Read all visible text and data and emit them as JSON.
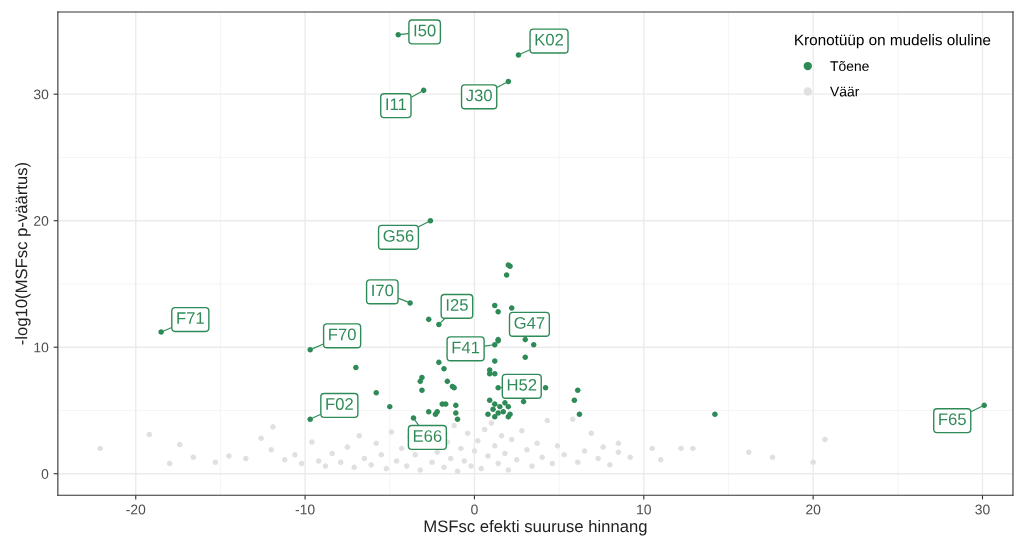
{
  "chart_data": {
    "type": "scatter",
    "xlabel": "MSFsc efekti suuruse hinnang",
    "ylabel": "-log10(MSFsc p-väärtus)",
    "xlim": [
      -24.6,
      31.8
    ],
    "ylim": [
      -1.7,
      36.5
    ],
    "xticks": [
      -20,
      -10,
      0,
      10,
      20,
      30
    ],
    "yticks": [
      0,
      10,
      20,
      30
    ],
    "grid": true,
    "legend": "top right",
    "legend_title": "Kronotüüp on mudelis oluline",
    "marker": "circle",
    "series": [
      {
        "name": "Tõene",
        "color": "#2e8b57",
        "x": [
          -4.5,
          2.6,
          2.0,
          -3.0,
          -2.6,
          -18.5,
          -9.7,
          -9.7,
          30.1,
          14.2,
          4.2,
          6.1,
          5.9,
          6.2,
          2.0,
          2.1,
          1.9,
          -3.8,
          -2.7,
          -2.1,
          1.2,
          1.4,
          2.2,
          1.2,
          1.4,
          1.4,
          3.0,
          3.5,
          3.0,
          1.2,
          -2.1,
          -1.8,
          0.9,
          0.9,
          1.2,
          -7.0,
          -3.1,
          -3.2,
          -3.1,
          -1.6,
          -1.3,
          -1.2,
          -5.8,
          1.4,
          2.9,
          -5.0,
          -1.9,
          -1.7,
          -2.7,
          -2.2,
          -2.3,
          -1.1,
          -1.1,
          -1.0,
          -3.6,
          0.9,
          1.2,
          1.5,
          1.8,
          1.1,
          1.4,
          1.7,
          0.8,
          1.2,
          2.0,
          2.0,
          2.1
        ],
        "values": [
          34.7,
          33.1,
          31.0,
          30.3,
          20.0,
          11.2,
          9.8,
          4.3,
          5.4,
          4.7,
          6.8,
          6.6,
          5.8,
          4.7,
          16.5,
          16.4,
          15.7,
          13.5,
          12.2,
          11.8,
          13.3,
          12.8,
          13.1,
          10.2,
          10.5,
          10.6,
          10.6,
          10.2,
          9.2,
          8.9,
          8.8,
          8.3,
          8.2,
          7.9,
          7.9,
          8.4,
          7.6,
          7.3,
          6.6,
          7.3,
          6.9,
          6.8,
          6.4,
          6.8,
          5.7,
          5.3,
          5.5,
          5.5,
          4.9,
          4.9,
          4.7,
          5.4,
          4.8,
          4.3,
          4.4,
          5.8,
          5.5,
          5.3,
          5.6,
          5.1,
          4.8,
          4.9,
          4.7,
          4.5,
          4.5,
          5.3,
          4.7
        ]
      },
      {
        "name": "Väär",
        "color": "#e0e0e0",
        "x": [
          -22.1,
          -19.2,
          -18.0,
          -17.4,
          -16.6,
          -15.3,
          -14.5,
          -13.5,
          -12.6,
          -11.9,
          -12.0,
          -11.2,
          -10.6,
          -10.2,
          -9.6,
          -9.2,
          -8.8,
          -8.4,
          -7.9,
          -7.5,
          -7.1,
          -6.8,
          -6.5,
          -6.1,
          -5.8,
          -5.5,
          -5.2,
          -4.9,
          -4.6,
          -4.3,
          -4.0,
          -3.8,
          -3.5,
          -3.2,
          -2.5,
          -2.2,
          -1.8,
          -1.6,
          -1.4,
          -1.2,
          -1.0,
          -0.8,
          -0.6,
          -0.4,
          -0.2,
          0.0,
          0.2,
          0.4,
          0.6,
          0.8,
          1.0,
          1.2,
          1.4,
          1.6,
          1.8,
          2.0,
          2.2,
          2.5,
          2.8,
          3.1,
          3.4,
          3.7,
          4.0,
          4.3,
          4.6,
          4.9,
          5.3,
          5.8,
          6.1,
          6.5,
          6.9,
          7.3,
          7.6,
          8.0,
          8.5,
          8.5,
          9.2,
          10.5,
          11.0,
          12.2,
          12.9,
          16.2,
          17.6,
          20.0,
          20.7
        ],
        "values": [
          2.0,
          3.1,
          0.8,
          2.3,
          1.3,
          0.9,
          1.4,
          1.2,
          2.8,
          3.7,
          1.9,
          1.1,
          1.5,
          0.8,
          2.5,
          1.0,
          0.6,
          1.6,
          0.9,
          2.1,
          0.5,
          3.0,
          1.2,
          0.7,
          2.4,
          1.5,
          0.4,
          3.3,
          1.0,
          2.0,
          0.6,
          2.9,
          1.5,
          0.3,
          0.9,
          1.7,
          0.5,
          2.5,
          1.2,
          3.8,
          0.2,
          2.0,
          1.0,
          3.2,
          0.6,
          1.8,
          2.6,
          0.4,
          3.5,
          1.4,
          4.0,
          2.2,
          0.8,
          3.0,
          1.6,
          0.3,
          2.7,
          1.1,
          3.4,
          1.9,
          0.6,
          2.4,
          1.3,
          4.2,
          0.8,
          2.2,
          1.5,
          4.3,
          0.9,
          1.8,
          3.2,
          1.2,
          2.1,
          0.7,
          2.4,
          1.7,
          1.3,
          2.0,
          1.1,
          2.0,
          2.0,
          1.7,
          1.3,
          0.9,
          2.7
        ]
      }
    ],
    "annotations": [
      {
        "text": "I50",
        "x": -4.5,
        "y": 34.7
      },
      {
        "text": "K02",
        "x": 2.6,
        "y": 33.1
      },
      {
        "text": "J30",
        "x": 2.0,
        "y": 31.0
      },
      {
        "text": "I11",
        "x": -3.0,
        "y": 30.3
      },
      {
        "text": "G56",
        "x": -2.6,
        "y": 20.0
      },
      {
        "text": "I70",
        "x": -3.8,
        "y": 13.5
      },
      {
        "text": "I25",
        "x": -2.1,
        "y": 11.8
      },
      {
        "text": "F71",
        "x": -18.5,
        "y": 11.2
      },
      {
        "text": "F70",
        "x": -9.7,
        "y": 9.8
      },
      {
        "text": "F41",
        "x": 1.2,
        "y": 10.2
      },
      {
        "text": "G47",
        "x": 3.0,
        "y": 10.6
      },
      {
        "text": "H52",
        "x": 1.4,
        "y": 6.8
      },
      {
        "text": "F02",
        "x": -9.7,
        "y": 4.3
      },
      {
        "text": "E66",
        "x": -3.6,
        "y": 4.4
      },
      {
        "text": "F65",
        "x": 30.1,
        "y": 5.4
      }
    ]
  }
}
